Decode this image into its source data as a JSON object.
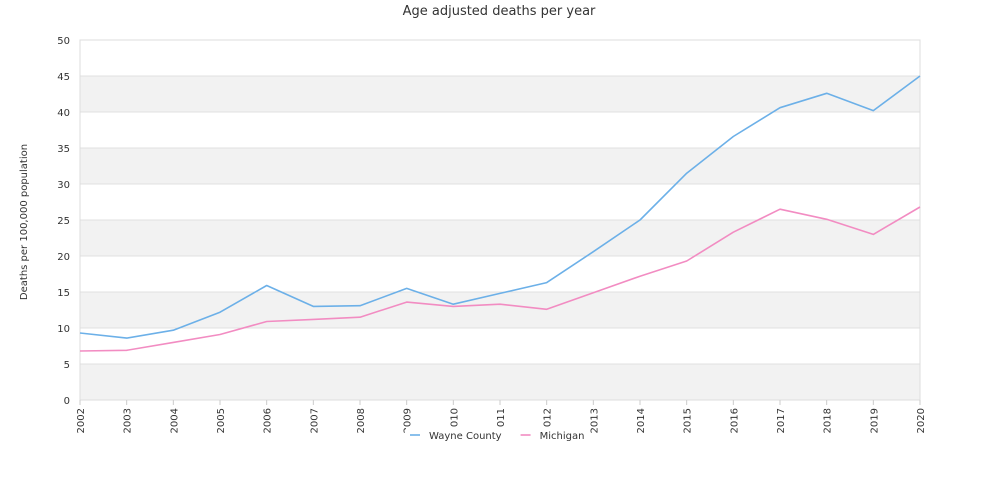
{
  "chart_data": {
    "type": "line",
    "title": "Age adjusted deaths per year",
    "xlabel": "",
    "ylabel": "Deaths per 100,000 population",
    "ylim": [
      0,
      50
    ],
    "yticks": [
      0,
      5,
      10,
      15,
      20,
      25,
      30,
      35,
      40,
      45,
      50
    ],
    "x": [
      "2002",
      "2003",
      "2004",
      "2005",
      "2006",
      "2007",
      "2008",
      "2009",
      "2010",
      "2011",
      "2012",
      "2013",
      "2014",
      "2015",
      "2016",
      "2017",
      "2018",
      "2019",
      "2020"
    ],
    "series": [
      {
        "name": "Wayne County",
        "color": "#6cb0e8",
        "values": [
          9.3,
          8.6,
          9.7,
          12.2,
          15.9,
          13.0,
          13.1,
          15.5,
          13.3,
          14.8,
          16.3,
          20.6,
          25.0,
          31.5,
          36.6,
          40.6,
          42.6,
          40.2,
          45.0
        ]
      },
      {
        "name": "Michigan",
        "color": "#f28cc2",
        "values": [
          6.8,
          6.9,
          8.0,
          9.1,
          10.9,
          11.2,
          11.5,
          13.6,
          13.0,
          13.3,
          12.6,
          14.9,
          17.2,
          19.3,
          23.3,
          26.5,
          25.1,
          23.0,
          26.8
        ]
      }
    ],
    "grid": "alternating horizontal bands",
    "legend_position": "bottom-center"
  }
}
